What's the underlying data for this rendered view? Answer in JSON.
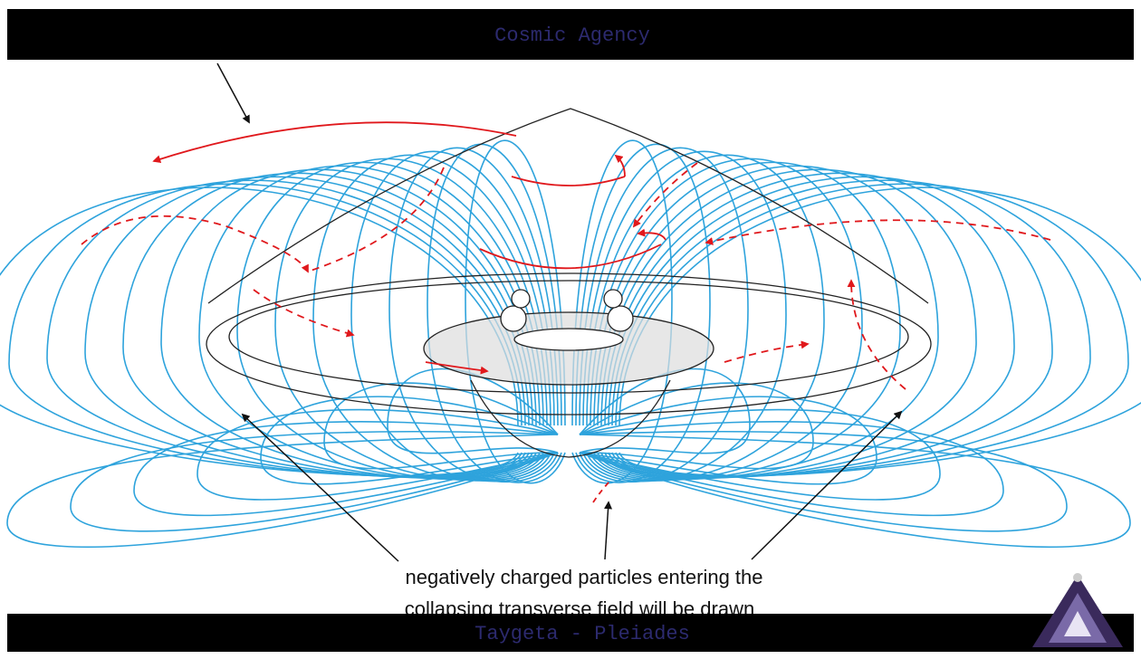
{
  "header": {
    "title": "Cosmic Agency"
  },
  "diagram": {
    "caption_lines": [
      "negatively charged particles entering the",
      "collapsing transverse field will be drawn"
    ]
  },
  "footer": {
    "title": "Taygeta - Pleiades"
  }
}
